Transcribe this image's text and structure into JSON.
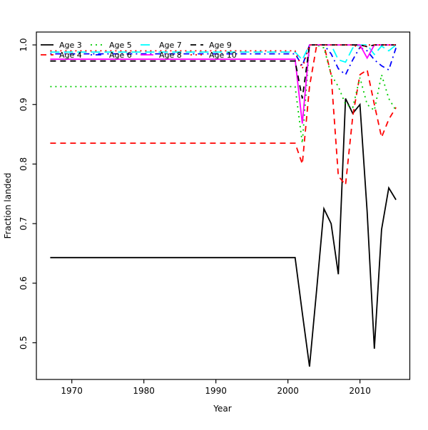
{
  "chart_data": {
    "type": "line",
    "title": "",
    "xlabel": "Year",
    "ylabel": "Fraction landed",
    "grid": false,
    "legend_position": "top-left",
    "legend_columns": 4,
    "xlim": [
      1965.08,
      2016.92
    ],
    "ylim": [
      0.4384,
      1.0216
    ],
    "x_ticks": [
      1970,
      1980,
      1990,
      2000,
      2010
    ],
    "x_tick_labels": [
      "1970",
      "1980",
      "1990",
      "2000",
      "2010"
    ],
    "y_ticks": [
      0.5,
      0.6,
      0.7,
      0.8,
      0.9,
      1.0
    ],
    "y_tick_labels": [
      "0.5",
      "0.6",
      "0.7",
      "0.8",
      "0.9",
      "1.0"
    ],
    "x": [
      1967,
      2001,
      2002,
      2003,
      2004,
      2005,
      2006,
      2007,
      2008,
      2009,
      2010,
      2011,
      2012,
      2013,
      2014,
      2015
    ],
    "series": [
      {
        "name": "Age 3",
        "color": "#000000",
        "linetype": "solid",
        "values": [
          0.643,
          0.643,
          0.55,
          0.46,
          0.59,
          0.725,
          0.7,
          0.615,
          0.91,
          0.885,
          0.9,
          0.72,
          0.49,
          0.69,
          0.76,
          0.74
        ]
      },
      {
        "name": "Age 4",
        "color": "#FF0000",
        "linetype": "dashed",
        "values": [
          0.835,
          0.835,
          0.8,
          0.93,
          1.0,
          1.0,
          0.95,
          0.78,
          0.765,
          0.88,
          0.95,
          0.958,
          0.9,
          0.845,
          0.875,
          0.895
        ]
      },
      {
        "name": "Age 5",
        "color": "#00CD00",
        "linetype": "dotted",
        "values": [
          0.93,
          0.93,
          0.835,
          1.0,
          1.0,
          0.995,
          0.95,
          0.93,
          0.9,
          0.895,
          0.945,
          0.9,
          0.89,
          0.95,
          0.91,
          0.89
        ]
      },
      {
        "name": "Age 6",
        "color": "#0000FF",
        "linetype": "dotdash",
        "values": [
          0.985,
          0.985,
          0.965,
          1.0,
          1.0,
          1.0,
          0.985,
          0.96,
          0.95,
          0.975,
          0.996,
          0.99,
          0.975,
          0.965,
          0.958,
          0.995
        ]
      },
      {
        "name": "Age 7",
        "color": "#00FFFF",
        "linetype": "longdash",
        "values": [
          0.988,
          0.988,
          0.975,
          1.0,
          1.0,
          1.0,
          1.0,
          0.975,
          0.971,
          0.995,
          1.0,
          1.0,
          0.984,
          0.998,
          0.99,
          1.0
        ]
      },
      {
        "name": "Age 8",
        "color": "#FF00FF",
        "linetype": "solid",
        "values": [
          0.976,
          0.976,
          0.868,
          1.0,
          1.0,
          1.0,
          1.0,
          1.0,
          1.0,
          1.0,
          1.0,
          0.978,
          1.0,
          1.0,
          1.0,
          1.0
        ]
      },
      {
        "name": "Age 9",
        "color": "#000000",
        "linetype": "dashed",
        "values": [
          0.973,
          0.973,
          0.91,
          1.0,
          1.0,
          1.0,
          1.0,
          1.0,
          1.0,
          1.0,
          1.0,
          0.997,
          1.0,
          1.0,
          1.0,
          1.0
        ]
      },
      {
        "name": "Age 10",
        "color": "#FF0000",
        "linetype": "dotted",
        "values": [
          0.99,
          0.99,
          0.96,
          1.0,
          1.0,
          1.0,
          1.0,
          1.0,
          1.0,
          1.0,
          0.995,
          1.0,
          1.0,
          1.0,
          1.0,
          1.0
        ]
      }
    ],
    "style": {
      "background": "#ffffff",
      "foreground": "#000000"
    }
  }
}
